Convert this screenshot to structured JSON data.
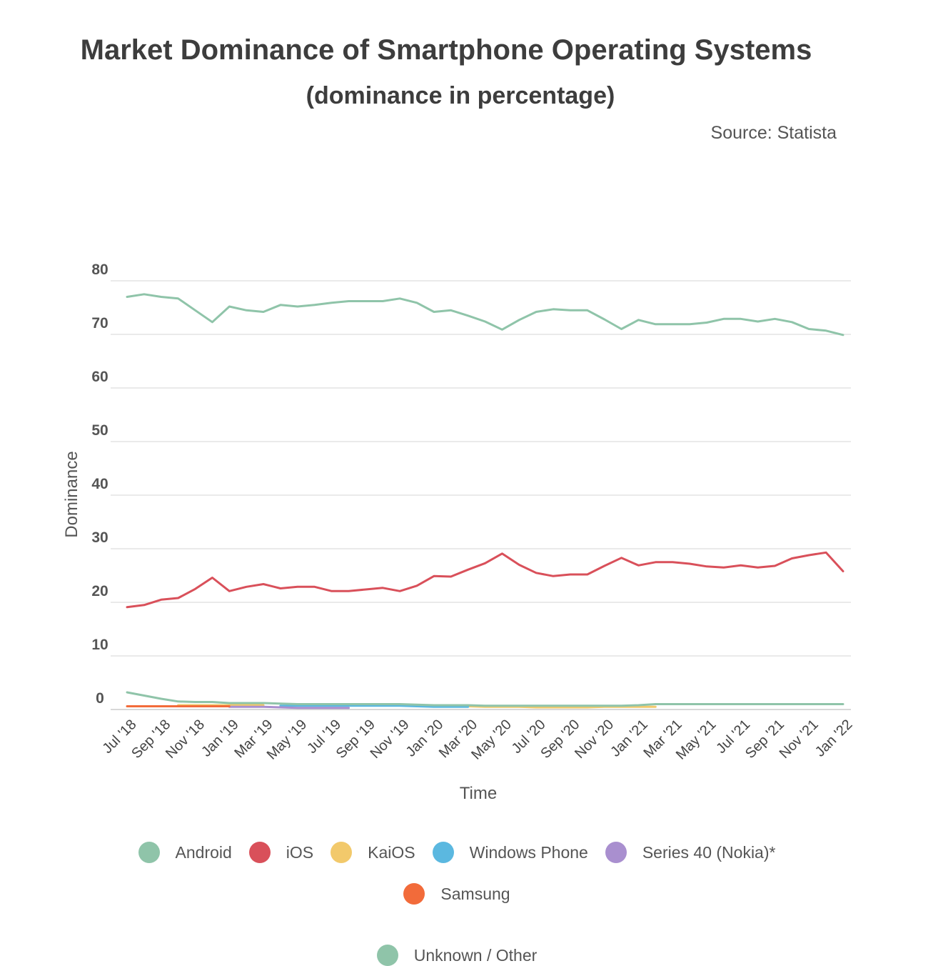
{
  "chart_data": {
    "type": "line",
    "title": "Market Dominance of Smartphone Operating Systems",
    "subtitle": "(dominance in percentage)",
    "source": "Source: Statista",
    "xlabel": "Time",
    "ylabel": "Dominance",
    "ylim": [
      0,
      80
    ],
    "yticks": [
      0,
      10,
      20,
      30,
      40,
      50,
      60,
      70,
      80
    ],
    "grid": true,
    "legend_position": "bottom",
    "x": [
      "Jul '18",
      "Aug '18",
      "Sep '18",
      "Oct '18",
      "Nov '18",
      "Dec '18",
      "Jan '19",
      "Feb '19",
      "Mar '19",
      "Apr '19",
      "May '19",
      "Jun '19",
      "Jul '19",
      "Aug '19",
      "Sep '19",
      "Oct '19",
      "Nov '19",
      "Dec '19",
      "Jan '20",
      "Feb '20",
      "Mar '20",
      "Apr '20",
      "May '20",
      "Jun '20",
      "Jul '20",
      "Aug '20",
      "Sep '20",
      "Oct '20",
      "Nov '20",
      "Dec '20",
      "Jan '21",
      "Feb '21",
      "Mar '21",
      "Apr '21",
      "May '21",
      "Jun '21",
      "Jul '21",
      "Aug '21",
      "Sep '21",
      "Oct '21",
      "Nov '21",
      "Dec '21",
      "Jan '22"
    ],
    "xtick_labels": [
      "Jul '18",
      "Sep '18",
      "Nov '18",
      "Jan '19",
      "Mar '19",
      "May '19",
      "Jul '19",
      "Sep '19",
      "Nov '19",
      "Jan '20",
      "Mar '20",
      "May '20",
      "Jul '20",
      "Sep '20",
      "Nov '20",
      "Jan '21",
      "Mar '21",
      "May '21",
      "Jul '21",
      "Sep '21",
      "Nov '21",
      "Jan '22"
    ],
    "series": [
      {
        "name": "Android",
        "color": "#8fc4a9",
        "values": [
          77.0,
          77.5,
          77.0,
          76.7,
          74.5,
          72.3,
          75.2,
          74.5,
          74.2,
          75.5,
          75.2,
          75.5,
          75.9,
          76.2,
          76.2,
          76.2,
          76.7,
          75.9,
          74.2,
          74.5,
          73.5,
          72.4,
          70.9,
          72.7,
          74.2,
          74.7,
          74.5,
          74.5,
          72.8,
          71.0,
          72.7,
          71.9,
          71.9,
          71.9,
          72.2,
          72.9,
          72.9,
          72.4,
          72.9,
          72.3,
          71.0,
          70.7,
          69.9
        ]
      },
      {
        "name": "iOS",
        "color": "#d9505a",
        "values": [
          19.1,
          19.5,
          20.5,
          20.8,
          22.5,
          24.6,
          22.1,
          22.9,
          23.4,
          22.6,
          22.9,
          22.9,
          22.1,
          22.1,
          22.4,
          22.7,
          22.1,
          23.1,
          24.9,
          24.8,
          26.1,
          27.3,
          29.1,
          27.0,
          25.5,
          24.9,
          25.2,
          25.2,
          26.8,
          28.3,
          26.9,
          27.5,
          27.5,
          27.2,
          26.7,
          26.5,
          26.9,
          26.5,
          26.8,
          28.2,
          28.8,
          29.3,
          25.8
        ]
      },
      {
        "name": "KaiOS",
        "color": "#f2c96b",
        "values": [
          null,
          null,
          null,
          0.8,
          0.8,
          0.8,
          0.8,
          0.8,
          0.8,
          null,
          null,
          null,
          null,
          null,
          null,
          null,
          null,
          0.6,
          0.6,
          0.8,
          0.6,
          0.5,
          0.5,
          0.5,
          0.4,
          0.4,
          0.4,
          0.4,
          0.5,
          0.5,
          0.5,
          0.5,
          null,
          null,
          null,
          null,
          null,
          null,
          null,
          null,
          null,
          null,
          null
        ]
      },
      {
        "name": "Windows Phone",
        "color": "#5bb8e0",
        "values": [
          null,
          null,
          null,
          null,
          null,
          null,
          null,
          null,
          null,
          0.7,
          0.7,
          0.7,
          0.7,
          0.7,
          0.7,
          0.7,
          0.7,
          0.6,
          0.5,
          0.5,
          0.5,
          null,
          null,
          null,
          null,
          null,
          null,
          null,
          null,
          null,
          null,
          null,
          null,
          null,
          null,
          null,
          null,
          null,
          null,
          null,
          null,
          null,
          null
        ]
      },
      {
        "name": "Series 40 (Nokia)*",
        "color": "#a98fcf",
        "values": [
          null,
          null,
          null,
          null,
          null,
          null,
          0.5,
          0.5,
          0.5,
          0.4,
          0.3,
          0.3,
          0.3,
          0.3,
          null,
          null,
          null,
          null,
          null,
          null,
          null,
          null,
          null,
          null,
          null,
          null,
          null,
          null,
          null,
          null,
          null,
          null,
          null,
          null,
          null,
          null,
          null,
          null,
          null,
          null,
          null,
          null,
          null
        ]
      },
      {
        "name": "Samsung",
        "color": "#f26b3a",
        "values": [
          0.6,
          0.6,
          0.6,
          0.6,
          0.6,
          0.6,
          0.6,
          null,
          null,
          null,
          null,
          null,
          null,
          null,
          null,
          null,
          null,
          null,
          null,
          null,
          null,
          null,
          null,
          null,
          null,
          null,
          null,
          null,
          null,
          null,
          null,
          null,
          null,
          null,
          null,
          null,
          null,
          null,
          null,
          null,
          null,
          null,
          null
        ]
      },
      {
        "name": "Unknown / Other",
        "color": "#8fc4a9",
        "values": [
          3.2,
          2.6,
          2.0,
          1.5,
          1.4,
          1.4,
          1.2,
          1.2,
          1.2,
          1.1,
          1.0,
          1.0,
          1.0,
          1.0,
          1.0,
          1.0,
          1.0,
          0.9,
          0.8,
          0.8,
          0.8,
          0.7,
          0.7,
          0.7,
          0.7,
          0.7,
          0.7,
          0.7,
          0.7,
          0.7,
          0.8,
          1.0,
          1.0,
          1.0,
          1.0,
          1.0,
          1.0,
          1.0,
          1.0,
          1.0,
          1.0,
          1.0,
          1.0
        ]
      }
    ]
  }
}
